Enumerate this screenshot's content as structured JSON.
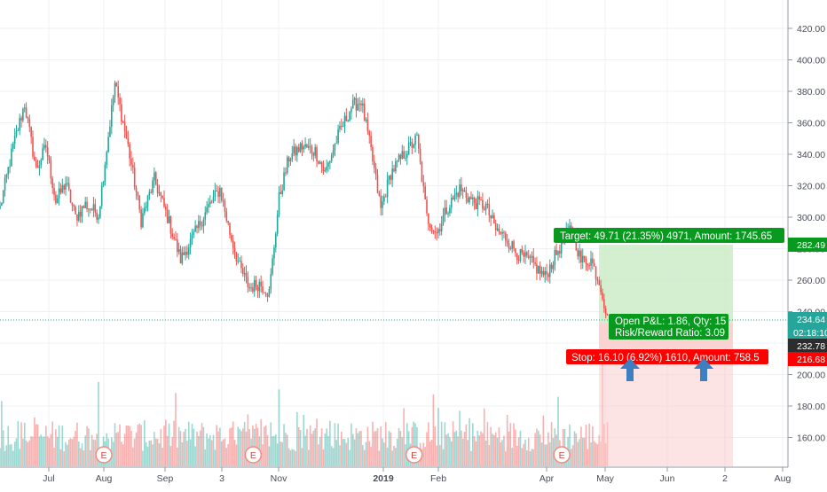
{
  "chart_data": {
    "type": "candlestick",
    "title": "",
    "xlabel": "",
    "ylabel": "",
    "ylim": [
      144,
      438
    ],
    "y_ticks": [
      160,
      180,
      200,
      220,
      240,
      260,
      280,
      300,
      320,
      340,
      360,
      380,
      400,
      420
    ],
    "x_tick_labels": [
      "Jul",
      "Aug",
      "Sep",
      "3",
      "Nov",
      "2019",
      "Feb",
      "Apr",
      "May",
      "Jun",
      "2",
      "Aug"
    ],
    "grid": true,
    "price_path": [
      {
        "i": 0,
        "p": 306
      },
      {
        "i": 8,
        "p": 345
      },
      {
        "i": 15,
        "p": 372
      },
      {
        "i": 22,
        "p": 330
      },
      {
        "i": 28,
        "p": 345
      },
      {
        "i": 34,
        "p": 310
      },
      {
        "i": 40,
        "p": 322
      },
      {
        "i": 46,
        "p": 300
      },
      {
        "i": 52,
        "p": 308
      },
      {
        "i": 60,
        "p": 302
      },
      {
        "i": 70,
        "p": 385
      },
      {
        "i": 78,
        "p": 345
      },
      {
        "i": 86,
        "p": 298
      },
      {
        "i": 94,
        "p": 324
      },
      {
        "i": 102,
        "p": 300
      },
      {
        "i": 110,
        "p": 273
      },
      {
        "i": 118,
        "p": 288
      },
      {
        "i": 126,
        "p": 305
      },
      {
        "i": 134,
        "p": 318
      },
      {
        "i": 140,
        "p": 290
      },
      {
        "i": 146,
        "p": 268
      },
      {
        "i": 152,
        "p": 255
      },
      {
        "i": 158,
        "p": 258
      },
      {
        "i": 164,
        "p": 252
      },
      {
        "i": 170,
        "p": 312
      },
      {
        "i": 176,
        "p": 338
      },
      {
        "i": 184,
        "p": 345
      },
      {
        "i": 192,
        "p": 342
      },
      {
        "i": 198,
        "p": 328
      },
      {
        "i": 206,
        "p": 352
      },
      {
        "i": 214,
        "p": 370
      },
      {
        "i": 220,
        "p": 374
      },
      {
        "i": 226,
        "p": 342
      },
      {
        "i": 232,
        "p": 305
      },
      {
        "i": 238,
        "p": 328
      },
      {
        "i": 246,
        "p": 340
      },
      {
        "i": 254,
        "p": 350
      },
      {
        "i": 260,
        "p": 300
      },
      {
        "i": 266,
        "p": 290
      },
      {
        "i": 272,
        "p": 305
      },
      {
        "i": 280,
        "p": 318
      },
      {
        "i": 288,
        "p": 310
      },
      {
        "i": 296,
        "p": 307
      },
      {
        "i": 302,
        "p": 292
      },
      {
        "i": 308,
        "p": 287
      },
      {
        "i": 316,
        "p": 276
      },
      {
        "i": 324,
        "p": 271
      },
      {
        "i": 332,
        "p": 262
      },
      {
        "i": 340,
        "p": 279
      },
      {
        "i": 348,
        "p": 294
      },
      {
        "i": 354,
        "p": 272
      },
      {
        "i": 360,
        "p": 273
      },
      {
        "i": 366,
        "p": 256
      },
      {
        "i": 370,
        "p": 235
      }
    ],
    "volume_spikes": [
      {
        "i": 60,
        "v": 0.68
      },
      {
        "i": 170,
        "v": 0.62
      },
      {
        "i": 264,
        "v": 0.58
      },
      {
        "i": 340,
        "v": 0.56
      },
      {
        "i": 367,
        "v": 0.84
      }
    ],
    "earnings_markers": [
      {
        "label": "E",
        "date_index": 60
      },
      {
        "label": "E",
        "date_index": 151
      },
      {
        "label": "E",
        "date_index": 249
      },
      {
        "label": "E",
        "date_index": 339
      }
    ],
    "current_price_line": 234.64,
    "position": {
      "entry": 232.78,
      "target": 282.49,
      "stop": 216.68
    }
  },
  "price_axis_labels": {
    "target": "282.49",
    "current": "234.64",
    "countdown": "02:18:10",
    "entry": "232.78",
    "stop": "216.68"
  },
  "colors": {
    "up": "#26a69a",
    "down": "#ef5350",
    "target_zone": "#cdebc8",
    "stop_zone": "#f9cdcd",
    "target_label": "#089a1f",
    "stop_label": "#ff0000",
    "price_line": "#26a69a",
    "entry_label": "#2d2d2d",
    "arrow": "#3e7fc1"
  },
  "position_labels": {
    "target": "Target: 49.71 (21.35%) 4971, Amount: 1745.65",
    "pnl_line1": "Open P&L: 1.86, Qty: 15",
    "pnl_line2": "Risk/Reward Ratio: 3.09",
    "stop": "Stop: 16.10 (6.92%) 1610, Amount: 758.5"
  }
}
